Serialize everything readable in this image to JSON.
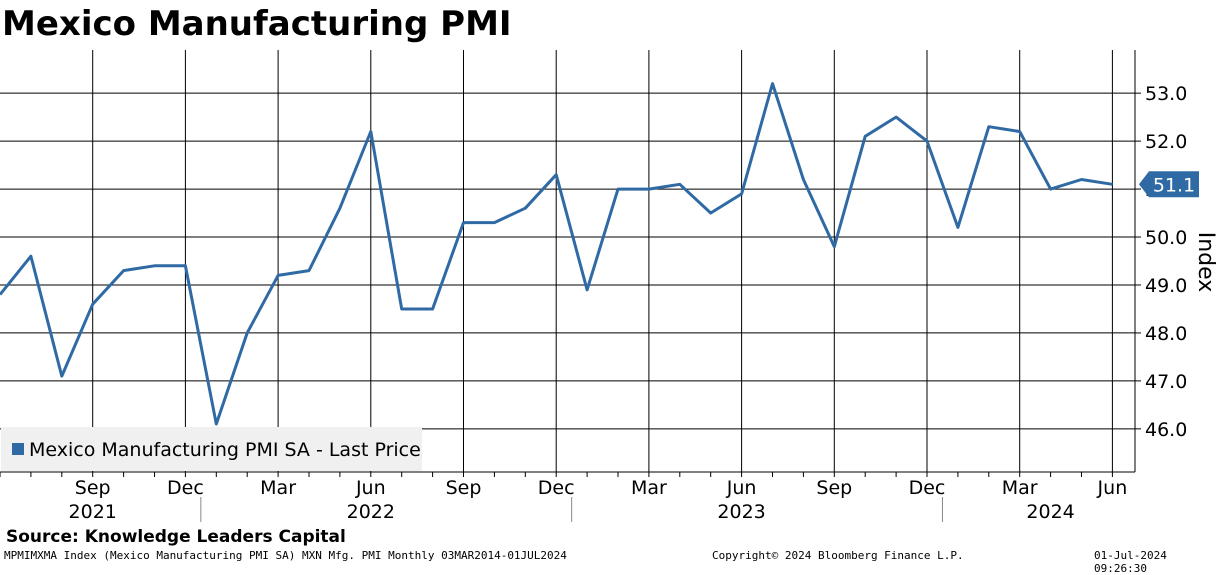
{
  "title": "Mexico Manufacturing PMI",
  "chart_data": {
    "type": "line",
    "ylabel": "Index",
    "ylim": [
      45.1,
      53.9
    ],
    "yticks": [
      "46.0",
      "47.0",
      "48.0",
      "49.0",
      "50.0",
      "51.0",
      "52.0",
      "53.0"
    ],
    "grid": true,
    "legend_position": "bottom-left",
    "x_month_labels": [
      "Sep",
      "Dec",
      "Mar",
      "Jun",
      "Sep",
      "Dec",
      "Mar",
      "Jun",
      "Sep",
      "Dec",
      "Mar",
      "Jun"
    ],
    "x_year_labels": [
      "2021",
      "2022",
      "2023",
      "2024"
    ],
    "last_value_label": "51.1",
    "series": [
      {
        "name": "Mexico Manufacturing PMI SA - Last Price",
        "color": "#2f6aa5",
        "x": [
          "2021-06",
          "2021-07",
          "2021-08",
          "2021-09",
          "2021-10",
          "2021-11",
          "2021-12",
          "2022-01",
          "2022-02",
          "2022-03",
          "2022-04",
          "2022-05",
          "2022-06",
          "2022-07",
          "2022-08",
          "2022-09",
          "2022-10",
          "2022-11",
          "2022-12",
          "2023-01",
          "2023-02",
          "2023-03",
          "2023-04",
          "2023-05",
          "2023-06",
          "2023-07",
          "2023-08",
          "2023-09",
          "2023-10",
          "2023-11",
          "2023-12",
          "2024-01",
          "2024-02",
          "2024-03",
          "2024-04",
          "2024-05",
          "2024-06"
        ],
        "values": [
          48.8,
          49.6,
          47.1,
          48.6,
          49.3,
          49.4,
          49.4,
          46.1,
          48.0,
          49.2,
          49.3,
          50.6,
          52.2,
          48.5,
          48.5,
          50.3,
          50.3,
          50.6,
          51.3,
          48.9,
          51.0,
          51.0,
          51.1,
          50.5,
          50.9,
          53.2,
          51.2,
          49.8,
          52.1,
          52.5,
          52.0,
          50.2,
          52.3,
          52.2,
          51.0,
          51.2,
          51.1
        ]
      }
    ]
  },
  "source": "Source: Knowledge Leaders Capital",
  "footer": {
    "left": "MPMIMXMA Index (Mexico Manufacturing PMI SA) MXN Mfg. PMI  Monthly 03MAR2014-01JUL2024",
    "center": "Copyright© 2024 Bloomberg Finance L.P.",
    "right": "01-Jul-2024 09:26:30"
  }
}
